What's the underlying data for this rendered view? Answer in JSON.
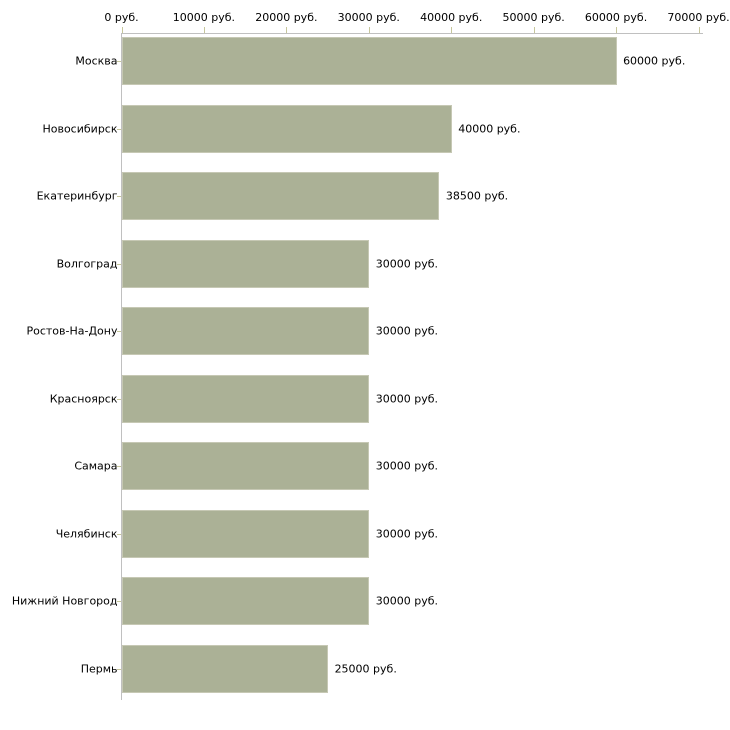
{
  "chart_data": {
    "type": "bar",
    "orientation": "horizontal",
    "title": "",
    "categories": [
      "Москва",
      "Новосибирск",
      "Екатеринбург",
      "Волгоград",
      "Ростов-На-Дону",
      "Красноярск",
      "Самара",
      "Челябинск",
      "Нижний Новгород",
      "Пермь"
    ],
    "values": [
      60000,
      40000,
      38500,
      30000,
      30000,
      30000,
      30000,
      30000,
      30000,
      25000
    ],
    "value_labels": [
      "60000 руб.",
      "40000 руб.",
      "38500 руб.",
      "30000 руб.",
      "30000 руб.",
      "30000 руб.",
      "30000 руб.",
      "30000 руб.",
      "30000 руб.",
      "25000 руб."
    ],
    "x_axis": {
      "position": "top",
      "xlim": [
        0,
        70000
      ],
      "ticks": [
        0,
        10000,
        20000,
        30000,
        40000,
        50000,
        60000,
        70000
      ],
      "tick_labels": [
        "0 руб.",
        "10000 руб.",
        "20000 руб.",
        "30000 руб.",
        "40000 руб.",
        "50000 руб.",
        "60000 руб.",
        "70000 руб."
      ]
    },
    "unit": "руб.",
    "legend": "none",
    "grid": "off",
    "colors": {
      "bar_fill": "#abb196",
      "bar_border": "#c6c8b4",
      "axis_line": "#c0c0c0",
      "tick_mark": "#c6c69b",
      "text": "#000000",
      "background": "#ffffff"
    }
  }
}
